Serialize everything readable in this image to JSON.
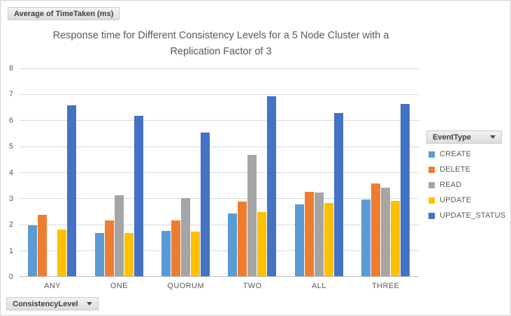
{
  "field_buttons": {
    "values": "Average of TimeTaken (ms)",
    "legend": "EventType",
    "axis": "ConsistencyLevel"
  },
  "chart_data": {
    "type": "bar",
    "title": "Response time for Different Consistency Levels for a 5 Node Cluster with a Replication Factor of 3",
    "title_lines": [
      "Response time for Different Consistency Levels for a 5 Node Cluster with a",
      "Replication Factor of 3"
    ],
    "categories": [
      "ANY",
      "ONE",
      "QUORUM",
      "TWO",
      "ALL",
      "THREE"
    ],
    "series": [
      {
        "name": "CREATE",
        "color": "#5B9BD5",
        "values": [
          1.95,
          1.65,
          1.75,
          2.4,
          2.75,
          2.95
        ]
      },
      {
        "name": "DELETE",
        "color": "#ED7D31",
        "values": [
          2.35,
          2.15,
          2.15,
          2.85,
          3.25,
          3.55
        ]
      },
      {
        "name": "READ",
        "color": "#A5A5A5",
        "values": [
          null,
          3.1,
          3.0,
          4.65,
          3.2,
          3.4
        ]
      },
      {
        "name": "UPDATE",
        "color": "#FFC000",
        "values": [
          1.8,
          1.65,
          1.7,
          2.45,
          2.8,
          2.9
        ]
      },
      {
        "name": "UPDATE_STATUS",
        "color": "#4472C4",
        "values": [
          6.55,
          6.15,
          5.5,
          6.9,
          6.25,
          6.6
        ]
      }
    ],
    "xlabel": "",
    "ylabel": "",
    "y_ticks": [
      0,
      1,
      2,
      3,
      4,
      5,
      6,
      7,
      8
    ],
    "ylim": [
      0,
      8
    ],
    "grid": true,
    "legend_position": "right",
    "colors": {
      "gridline": "#D9D9D9",
      "axis_line": "#BFBFBF",
      "text": "#595959"
    }
  }
}
